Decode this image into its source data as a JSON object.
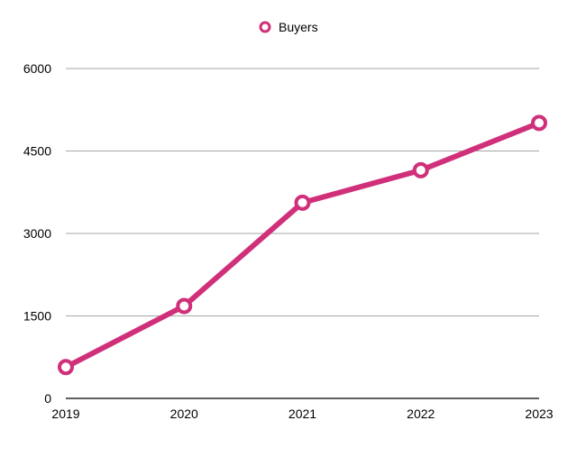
{
  "chart_data": {
    "type": "line",
    "title": "",
    "xlabel": "",
    "ylabel": "",
    "categories": [
      "2019",
      "2020",
      "2021",
      "2022",
      "2023"
    ],
    "series": [
      {
        "name": "Buyers",
        "values": [
          570,
          1680,
          3560,
          4150,
          5010
        ],
        "color": "#d0307a"
      }
    ],
    "ylim": [
      0,
      6000
    ],
    "yticks": [
      0,
      1500,
      3000,
      4500,
      6000
    ],
    "grid": true,
    "legend_position": "top-center"
  }
}
